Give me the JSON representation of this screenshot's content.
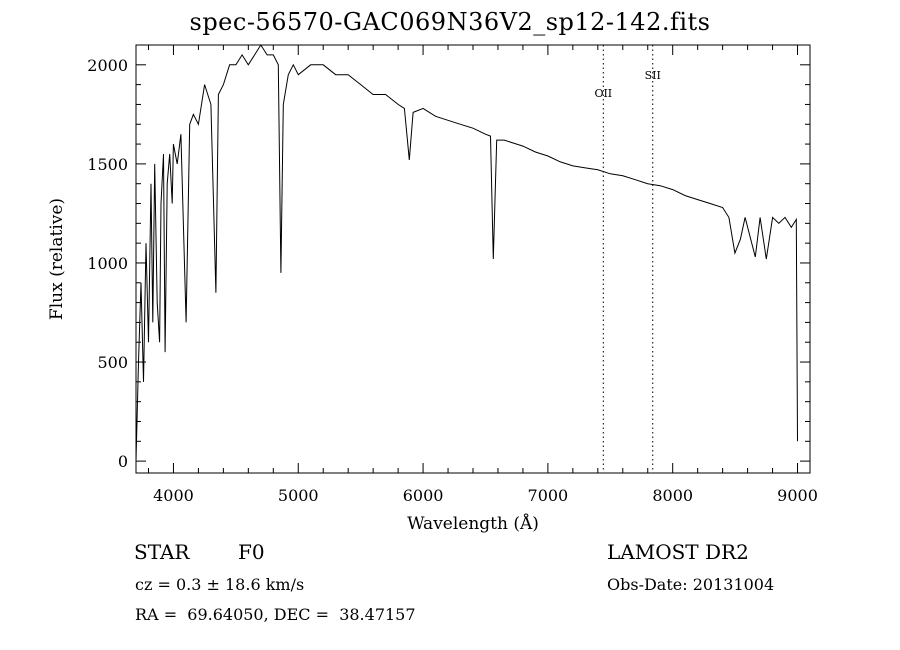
{
  "chart_data": {
    "type": "line",
    "title": "spec-56570-GAC069N36V2_sp12-142.fits",
    "xlabel": "Wavelength (Å)",
    "ylabel": "Flux (relative)",
    "xlim": [
      3700,
      9100
    ],
    "ylim": [
      -60,
      2100
    ],
    "xticks": [
      4000,
      5000,
      6000,
      7000,
      8000,
      9000
    ],
    "yticks": [
      0,
      500,
      1000,
      1500,
      2000
    ],
    "grid": false,
    "series": [
      {
        "x": [
          3700,
          3720,
          3740,
          3760,
          3780,
          3800,
          3820,
          3835,
          3850,
          3870,
          3889,
          3900,
          3920,
          3933,
          3950,
          3970,
          3990,
          4000,
          4030,
          4060,
          4101,
          4130,
          4160,
          4200,
          4250,
          4300,
          4340,
          4360,
          4400,
          4450,
          4500,
          4550,
          4600,
          4650,
          4700,
          4750,
          4800,
          4840,
          4861,
          4880,
          4920,
          4960,
          5000,
          5100,
          5200,
          5300,
          5400,
          5500,
          5600,
          5700,
          5800,
          5850,
          5890,
          5920,
          6000,
          6100,
          6200,
          6300,
          6400,
          6500,
          6540,
          6563,
          6590,
          6650,
          6700,
          6800,
          6900,
          7000,
          7100,
          7200,
          7300,
          7400,
          7500,
          7600,
          7700,
          7800,
          7900,
          8000,
          8100,
          8200,
          8300,
          8400,
          8450,
          8498,
          8542,
          8580,
          8662,
          8700,
          8750,
          8800,
          8850,
          8900,
          8950,
          8990,
          9000
        ],
        "y": [
          0,
          500,
          900,
          400,
          1100,
          600,
          1400,
          700,
          1500,
          800,
          600,
          1300,
          1550,
          550,
          1400,
          1550,
          1300,
          1600,
          1500,
          1650,
          700,
          1700,
          1750,
          1700,
          1900,
          1800,
          850,
          1850,
          1900,
          2000,
          2000,
          2050,
          2000,
          2050,
          2100,
          2050,
          2050,
          2000,
          950,
          1800,
          1950,
          2000,
          1950,
          2000,
          2000,
          1950,
          1950,
          1900,
          1850,
          1850,
          1800,
          1780,
          1520,
          1760,
          1780,
          1740,
          1720,
          1700,
          1680,
          1650,
          1640,
          1020,
          1620,
          1620,
          1610,
          1590,
          1560,
          1540,
          1510,
          1490,
          1480,
          1470,
          1450,
          1440,
          1420,
          1400,
          1390,
          1370,
          1340,
          1320,
          1300,
          1280,
          1230,
          1050,
          1120,
          1230,
          1030,
          1230,
          1020,
          1230,
          1200,
          1230,
          1180,
          1220,
          100
        ]
      }
    ],
    "line_labels": [
      {
        "label": "OII",
        "x": 7444
      },
      {
        "label": "SII",
        "x": 7840
      }
    ]
  },
  "footer": {
    "object_type": "STAR",
    "object_class": "F0",
    "survey": "LAMOST DR2",
    "cz": "cz = 0.3 ± 18.6 km/s",
    "obs_date": "Obs-Date: 20131004",
    "coords": "RA =  69.64050, DEC =  38.47157"
  }
}
